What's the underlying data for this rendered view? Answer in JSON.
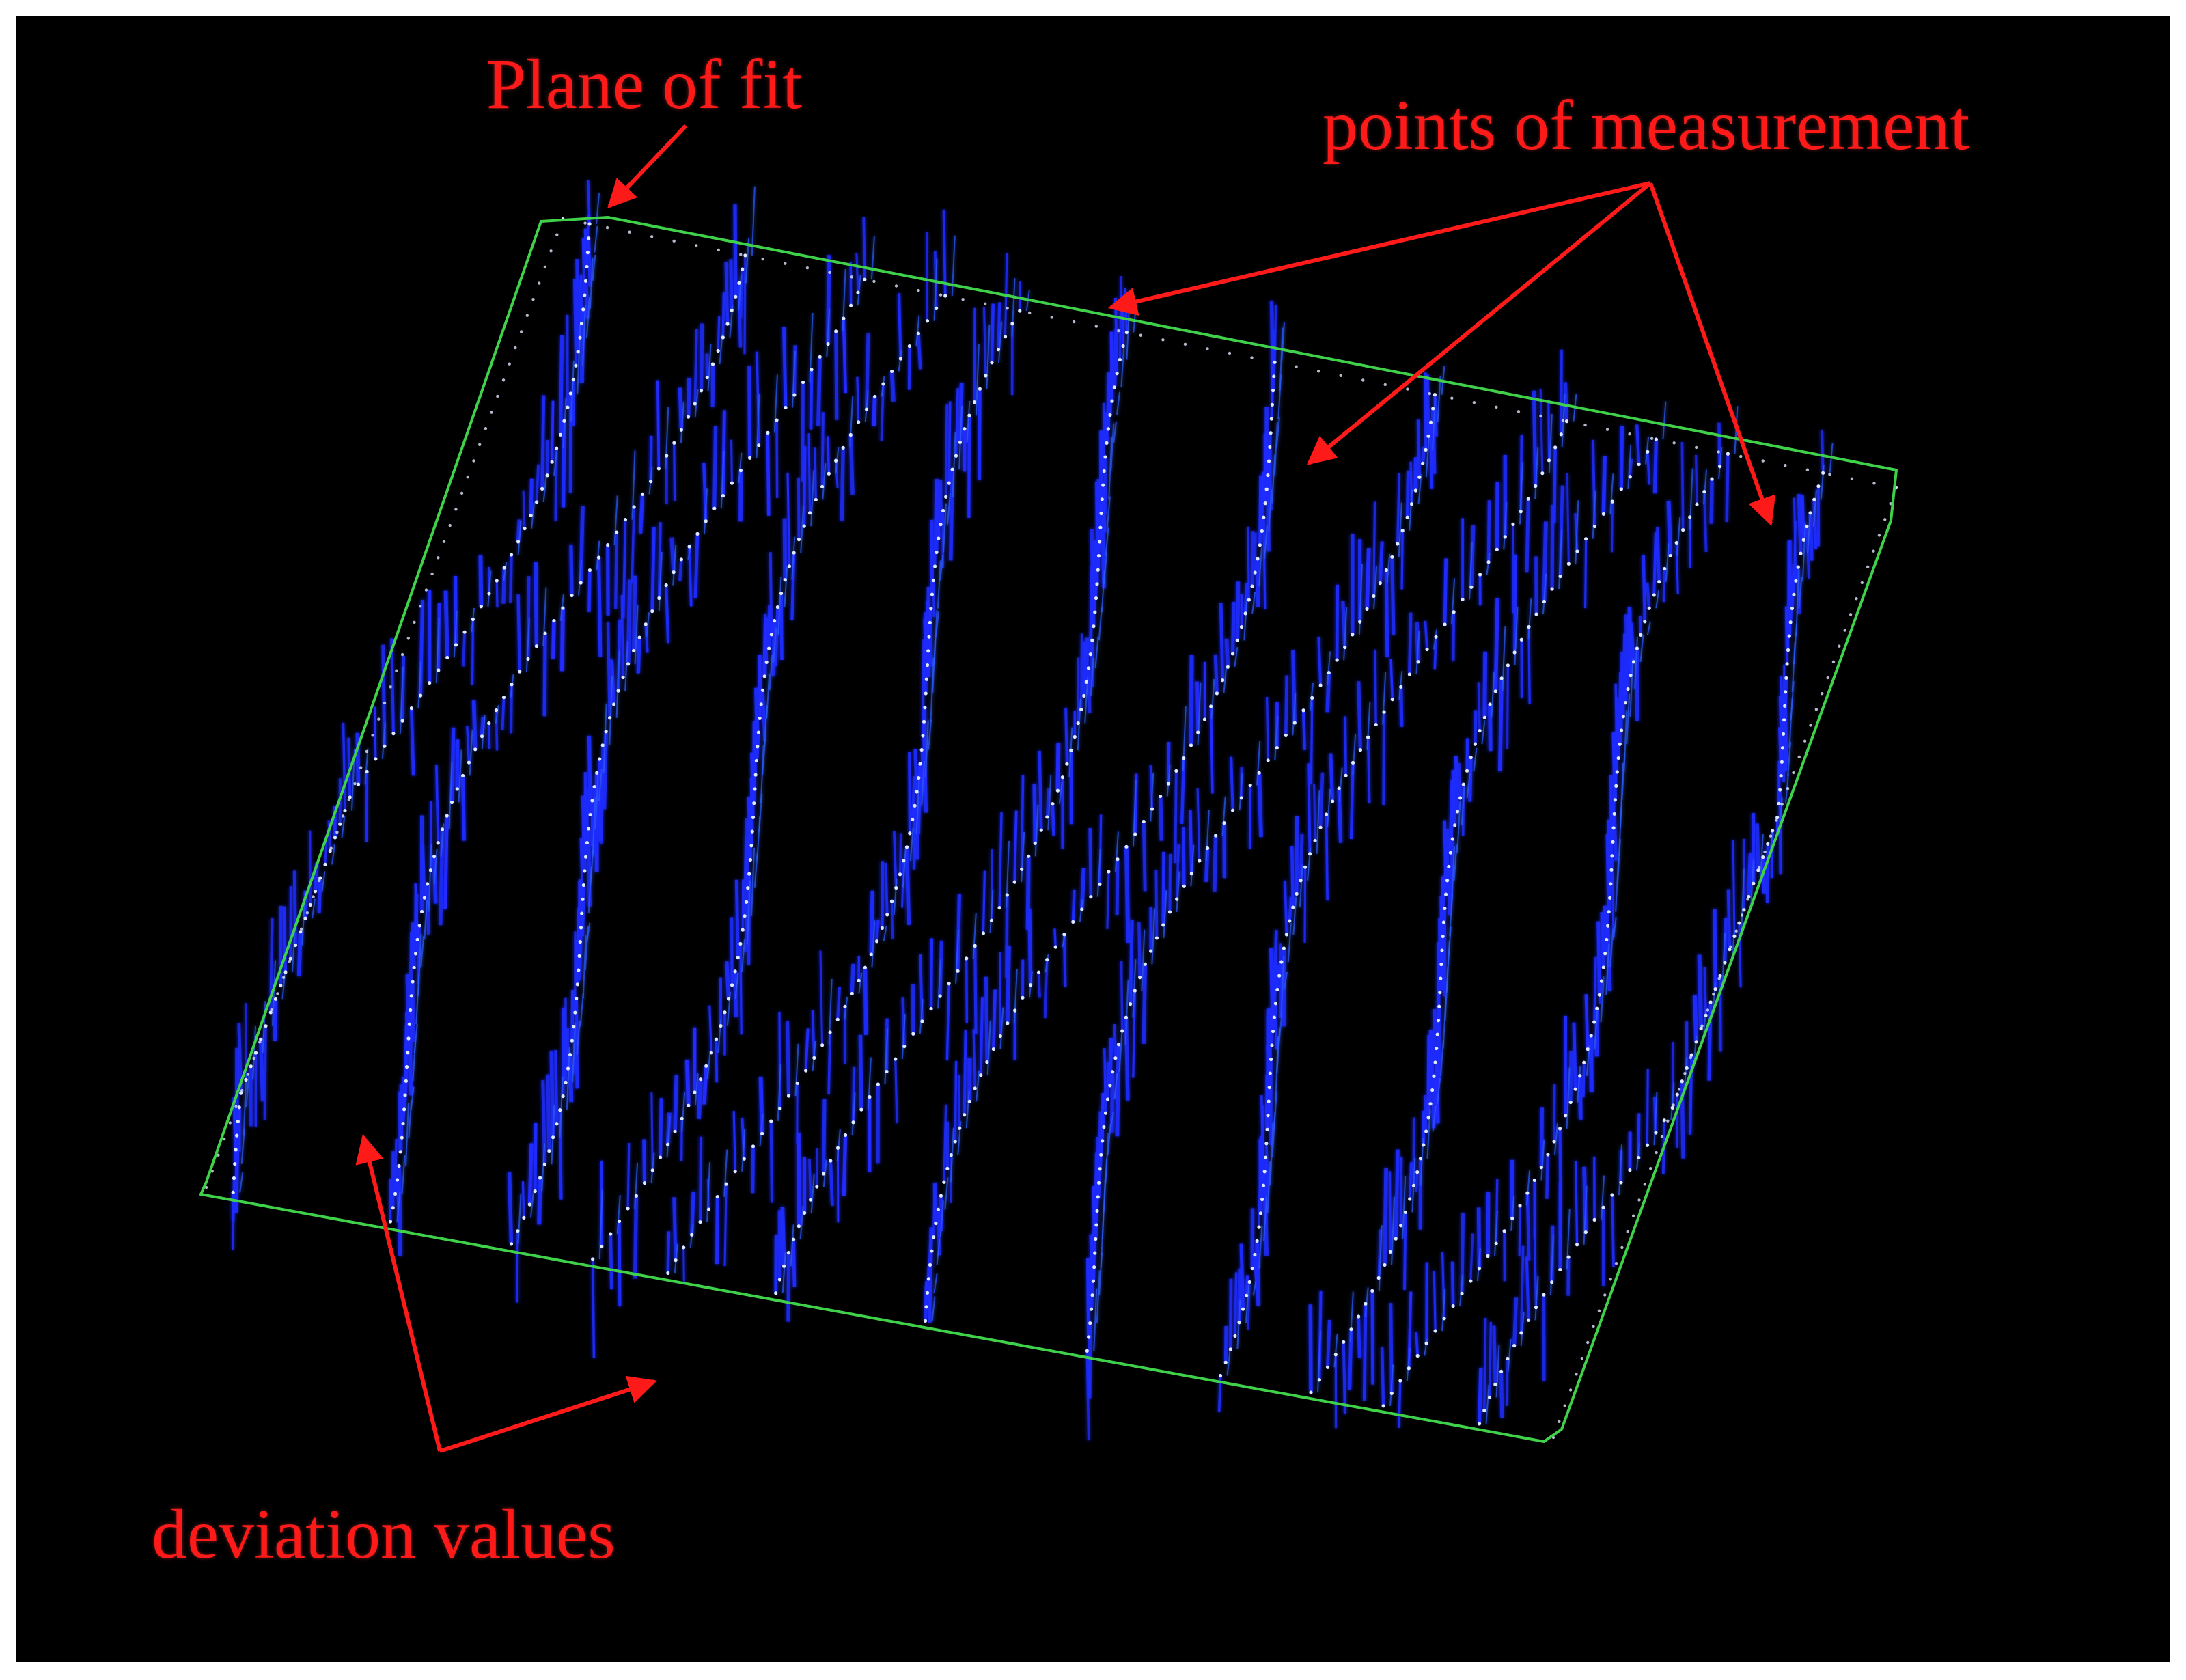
{
  "colors": {
    "background": "#000000",
    "border": "#ffffff",
    "annotation": "#ff1a1a",
    "deviation": "#1f2cff",
    "deviation_glow": "#2d5bff",
    "plane_outline": "#3fd14a",
    "measurement_points": "#dfe9ff"
  },
  "annotations": {
    "plane_of_fit": "Plane of fit",
    "points_of_measurement": "points of measurement",
    "deviation_values": "deviation values"
  },
  "icons": {
    "arrowhead": "arrowhead-icon"
  }
}
